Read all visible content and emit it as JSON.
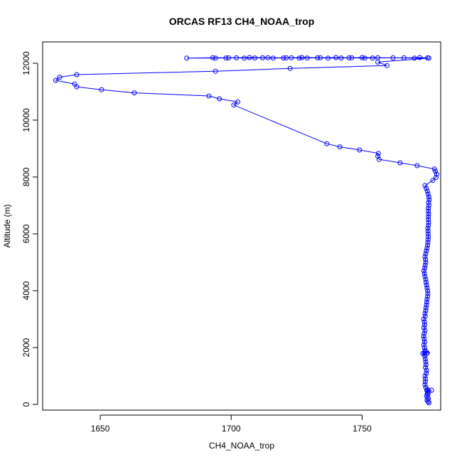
{
  "chart_data": {
    "type": "line",
    "title": "ORCAS RF13 CH4_NOAA_trop",
    "xlabel": "CH4_NOAA_trop",
    "ylabel": "Altitude (m)",
    "xlim": [
      1628,
      1780
    ],
    "ylim": [
      -200,
      12750
    ],
    "x_ticks": [
      1650,
      1700,
      1750
    ],
    "y_ticks": [
      0,
      2000,
      4000,
      6000,
      8000,
      10000,
      12000
    ],
    "x_tick_labels": [
      "1650",
      "1700",
      "1750"
    ],
    "y_tick_labels": [
      "0",
      "2000",
      "4000",
      "6000",
      "8000",
      "10000",
      "12000"
    ],
    "grid": false,
    "legend": "none",
    "series": [
      {
        "color": "#0000ff",
        "marker": "open-circle",
        "points": [
          [
            1775.5,
            60
          ],
          [
            1775.2,
            100
          ],
          [
            1774.8,
            150
          ],
          [
            1775.3,
            200
          ],
          [
            1775.0,
            250
          ],
          [
            1774.6,
            300
          ],
          [
            1775.1,
            350
          ],
          [
            1774.9,
            400
          ],
          [
            1775.4,
            450
          ],
          [
            1774.7,
            500
          ],
          [
            1776.5,
            500
          ],
          [
            1775.0,
            520
          ],
          [
            1774.3,
            600
          ],
          [
            1774.0,
            700
          ],
          [
            1774.1,
            800
          ],
          [
            1774.2,
            900
          ],
          [
            1774.0,
            1000
          ],
          [
            1774.5,
            1100
          ],
          [
            1774.6,
            1200
          ],
          [
            1774.2,
            1300
          ],
          [
            1774.4,
            1400
          ],
          [
            1774.3,
            1500
          ],
          [
            1774.1,
            1600
          ],
          [
            1774.0,
            1700
          ],
          [
            1773.2,
            1790
          ],
          [
            1773.8,
            1795
          ],
          [
            1774.6,
            1800
          ],
          [
            1774.9,
            1810
          ],
          [
            1774.1,
            1850
          ],
          [
            1774.0,
            1900
          ],
          [
            1773.8,
            2000
          ],
          [
            1773.6,
            2100
          ],
          [
            1773.9,
            2200
          ],
          [
            1773.7,
            2300
          ],
          [
            1773.5,
            2400
          ],
          [
            1773.7,
            2500
          ],
          [
            1774.0,
            2600
          ],
          [
            1773.6,
            2700
          ],
          [
            1773.9,
            2800
          ],
          [
            1773.8,
            2900
          ],
          [
            1773.5,
            3000
          ],
          [
            1774.1,
            3100
          ],
          [
            1774.0,
            3200
          ],
          [
            1774.3,
            3300
          ],
          [
            1774.4,
            3400
          ],
          [
            1774.6,
            3500
          ],
          [
            1774.7,
            3600
          ],
          [
            1774.8,
            3700
          ],
          [
            1775.0,
            3800
          ],
          [
            1775.1,
            3900
          ],
          [
            1775.0,
            4000
          ],
          [
            1774.8,
            4100
          ],
          [
            1774.6,
            4200
          ],
          [
            1774.4,
            4300
          ],
          [
            1774.3,
            4400
          ],
          [
            1774.0,
            4500
          ],
          [
            1773.8,
            4600
          ],
          [
            1773.6,
            4700
          ],
          [
            1773.9,
            4800
          ],
          [
            1774.1,
            4900
          ],
          [
            1774.3,
            5000
          ],
          [
            1774.2,
            5100
          ],
          [
            1774.0,
            5200
          ],
          [
            1774.3,
            5300
          ],
          [
            1774.5,
            5400
          ],
          [
            1774.8,
            5500
          ],
          [
            1775.0,
            5600
          ],
          [
            1775.1,
            5700
          ],
          [
            1775.2,
            5800
          ],
          [
            1775.3,
            5900
          ],
          [
            1775.2,
            6000
          ],
          [
            1775.2,
            6100
          ],
          [
            1775.1,
            6200
          ],
          [
            1775.3,
            6300
          ],
          [
            1775.4,
            6400
          ],
          [
            1775.3,
            6500
          ],
          [
            1775.3,
            6600
          ],
          [
            1775.4,
            6700
          ],
          [
            1775.3,
            6800
          ],
          [
            1775.3,
            6900
          ],
          [
            1775.5,
            7000
          ],
          [
            1775.4,
            7100
          ],
          [
            1775.6,
            7200
          ],
          [
            1775.5,
            7300
          ],
          [
            1775.2,
            7400
          ],
          [
            1774.9,
            7500
          ],
          [
            1774.5,
            7600
          ],
          [
            1774.0,
            7700
          ],
          [
            1777.0,
            7880
          ],
          [
            1778.2,
            7980
          ],
          [
            1778.5,
            8100
          ],
          [
            1778.0,
            8200
          ],
          [
            1777.6,
            8280
          ],
          [
            1771.0,
            8400
          ],
          [
            1764.5,
            8500
          ],
          [
            1756.5,
            8620
          ],
          [
            1756.0,
            8730
          ],
          [
            1756.2,
            8830
          ],
          [
            1749.0,
            8950
          ],
          [
            1741.5,
            9060
          ],
          [
            1736.5,
            9170
          ],
          [
            1701.0,
            10530
          ],
          [
            1702.5,
            10640
          ],
          [
            1695.5,
            10750
          ],
          [
            1691.5,
            10850
          ],
          [
            1663.0,
            10960
          ],
          [
            1650.5,
            11070
          ],
          [
            1641.0,
            11170
          ],
          [
            1640.2,
            11270
          ],
          [
            1633.0,
            11400
          ],
          [
            1634.5,
            11510
          ],
          [
            1641.0,
            11600
          ],
          [
            1694.0,
            11720
          ],
          [
            1722.5,
            11820
          ],
          [
            1759.5,
            11920
          ],
          [
            1756.0,
            12040
          ],
          [
            1775.5,
            12180
          ],
          [
            1770.0,
            12180
          ],
          [
            1761.8,
            12190
          ],
          [
            1754.0,
            12185
          ],
          [
            1751.0,
            12180
          ],
          [
            1746.0,
            12190
          ],
          [
            1742.0,
            12185
          ],
          [
            1737.0,
            12180
          ],
          [
            1733.0,
            12190
          ],
          [
            1729.0,
            12185
          ],
          [
            1726.0,
            12180
          ],
          [
            1723.0,
            12190
          ],
          [
            1720.0,
            12185
          ],
          [
            1716.0,
            12180
          ],
          [
            1712.0,
            12190
          ],
          [
            1709.0,
            12185
          ],
          [
            1705.0,
            12180
          ],
          [
            1702.0,
            12190
          ],
          [
            1698.0,
            12185
          ],
          [
            1694.0,
            12180
          ],
          [
            1683.0,
            12180
          ],
          [
            1693.0,
            12195
          ],
          [
            1699.0,
            12190
          ],
          [
            1707.0,
            12200
          ],
          [
            1714.0,
            12195
          ],
          [
            1721.0,
            12190
          ],
          [
            1727.0,
            12200
          ],
          [
            1734.0,
            12195
          ],
          [
            1740.0,
            12200
          ],
          [
            1745.0,
            12190
          ],
          [
            1750.0,
            12200
          ],
          [
            1756.0,
            12195
          ],
          [
            1766.0,
            12190
          ],
          [
            1772.0,
            12200
          ],
          [
            1775.0,
            12190
          ]
        ]
      }
    ]
  }
}
